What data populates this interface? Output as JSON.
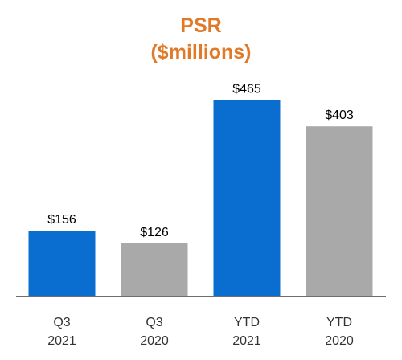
{
  "chart_data": {
    "type": "bar",
    "title": "PSR",
    "subtitle": "($millions)",
    "categories": [
      [
        "Q3",
        "2021"
      ],
      [
        "Q3",
        "2020"
      ],
      [
        "YTD",
        "2021"
      ],
      [
        "YTD",
        "2020"
      ]
    ],
    "values": [
      156,
      126,
      465,
      403
    ],
    "data_labels": [
      "$156",
      "$126",
      "$465",
      "$403"
    ],
    "ylim": [
      0,
      500
    ],
    "grid": false,
    "legend": "none",
    "colors": {
      "title": "#E07A28",
      "bars": [
        "#0A6ED1",
        "#A9A9A9",
        "#0A6ED1",
        "#A9A9A9"
      ],
      "axis": "#6E6E6E"
    }
  }
}
